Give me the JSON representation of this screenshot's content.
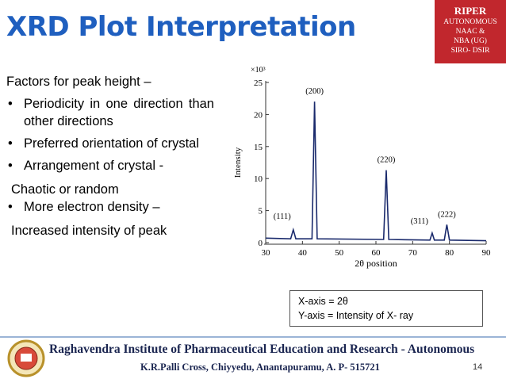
{
  "header": {
    "title": "XRD Plot Interpretation",
    "badge": [
      "RIPER",
      "AUTONOMOUS",
      "NAAC &",
      "NBA (UG)",
      "SIRO- DSIR"
    ]
  },
  "content": {
    "heading": "Factors for peak height –",
    "items": [
      {
        "text": "Periodicity in one direction than other directions"
      },
      {
        "text": "Preferred orientation of crystal"
      },
      {
        "text": "Arrangement of crystal -",
        "sub": "Chaotic or random"
      },
      {
        "text": "More electron density –",
        "sub": "Increased intensity of peak"
      }
    ]
  },
  "chart": {
    "type": "line",
    "x_label": "2θ position",
    "y_label": "Intensity",
    "y_multiplier": "×10³",
    "xlim": [
      30,
      90
    ],
    "ylim": [
      0,
      25
    ],
    "xticks": [
      30,
      40,
      50,
      60,
      70,
      80,
      90
    ],
    "yticks": [
      0,
      5,
      10,
      15,
      20,
      25
    ],
    "color": "#1a2a6c",
    "x": [
      30,
      36.8,
      37.5,
      38.2,
      42.6,
      43.3,
      44.0,
      62.1,
      62.8,
      63.5,
      74.7,
      75.3,
      75.9,
      78.6,
      79.3,
      80.0,
      90
    ],
    "y": [
      0.7,
      0.6,
      2.0,
      0.6,
      0.6,
      22,
      0.6,
      0.5,
      11.3,
      0.5,
      0.4,
      1.5,
      0.4,
      0.4,
      2.8,
      0.4,
      0.3
    ],
    "peaks": [
      {
        "label": "(111)",
        "x": 37.5,
        "y": 2.0
      },
      {
        "label": "(200)",
        "x": 43.3,
        "y": 22
      },
      {
        "label": "(220)",
        "x": 62.8,
        "y": 11.3
      },
      {
        "label": "(311)",
        "x": 75.3,
        "y": 1.5
      },
      {
        "label": "(222)",
        "x": 79.3,
        "y": 2.8
      }
    ]
  },
  "note": [
    "X-axis = 2θ",
    "Y-axis = Intensity of X- ray"
  ],
  "footer": {
    "institute": "Raghavendra Institute of Pharmaceutical Education and Research - Autonomous",
    "address": "K.R.Palli Cross, Chiyyedu, Anantapuramu, A. P- 515721",
    "page": "14"
  }
}
